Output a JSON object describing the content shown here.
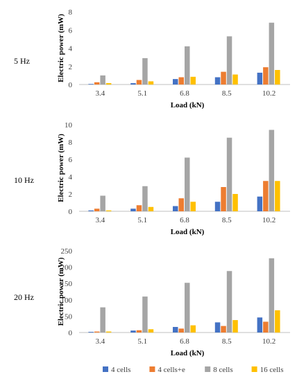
{
  "legend": {
    "items": [
      {
        "name": "4 cells",
        "color": "#4472C4"
      },
      {
        "name": "4 cells+e",
        "color": "#ED7D31"
      },
      {
        "name": "8 cells",
        "color": "#A5A5A5"
      },
      {
        "name": "16 cells",
        "color": "#FFC000"
      }
    ]
  },
  "chart_data": [
    {
      "type": "bar",
      "panel_label": "5 Hz",
      "categories": [
        "3.4",
        "5.1",
        "6.8",
        "8.5",
        "10.2"
      ],
      "xlabel": "Load (kN)",
      "ylabel": "Electric power (mW)",
      "ylim": [
        0,
        8
      ],
      "yticks": [
        0,
        2,
        4,
        6,
        8
      ],
      "grid": false,
      "legend_position": "bottom",
      "series": [
        {
          "name": "4 cells",
          "values": [
            0.05,
            0.15,
            0.6,
            0.8,
            1.3
          ]
        },
        {
          "name": "4 cells+e",
          "values": [
            0.25,
            0.5,
            0.8,
            1.4,
            1.9
          ]
        },
        {
          "name": "8 cells",
          "values": [
            1.0,
            2.9,
            4.2,
            5.3,
            6.8
          ]
        },
        {
          "name": "16 cells",
          "values": [
            0.15,
            0.35,
            0.85,
            1.1,
            1.6
          ]
        }
      ]
    },
    {
      "type": "bar",
      "panel_label": "10 Hz",
      "categories": [
        "3.4",
        "5.1",
        "6.8",
        "8.5",
        "10.2"
      ],
      "xlabel": "Load (kN)",
      "ylabel": "Electric power (mW)",
      "ylim": [
        0,
        10
      ],
      "yticks": [
        0,
        2,
        4,
        6,
        8,
        10
      ],
      "grid": false,
      "legend_position": "bottom",
      "series": [
        {
          "name": "4 cells",
          "values": [
            0.1,
            0.3,
            0.6,
            1.1,
            1.7
          ]
        },
        {
          "name": "4 cells+e",
          "values": [
            0.3,
            0.7,
            1.5,
            2.8,
            3.5
          ]
        },
        {
          "name": "8 cells",
          "values": [
            1.8,
            2.9,
            6.2,
            8.5,
            9.4
          ]
        },
        {
          "name": "16 cells",
          "values": [
            0.1,
            0.5,
            1.1,
            2.0,
            3.5
          ]
        }
      ]
    },
    {
      "type": "bar",
      "panel_label": "20 Hz",
      "categories": [
        "3.4",
        "5.1",
        "6.8",
        "8.5",
        "10.2"
      ],
      "xlabel": "Load (kN)",
      "ylabel": "Electric power (mW)",
      "ylim": [
        0,
        250
      ],
      "yticks": [
        0,
        50,
        100,
        150,
        200,
        250
      ],
      "grid": false,
      "legend_position": "bottom",
      "series": [
        {
          "name": "4 cells",
          "values": [
            2,
            6,
            17,
            31,
            46
          ]
        },
        {
          "name": "4 cells+e",
          "values": [
            3,
            7,
            12,
            20,
            33
          ]
        },
        {
          "name": "8 cells",
          "values": [
            77,
            110,
            152,
            188,
            227
          ]
        },
        {
          "name": "16 cells",
          "values": [
            3,
            10,
            22,
            38,
            68
          ]
        }
      ]
    }
  ]
}
